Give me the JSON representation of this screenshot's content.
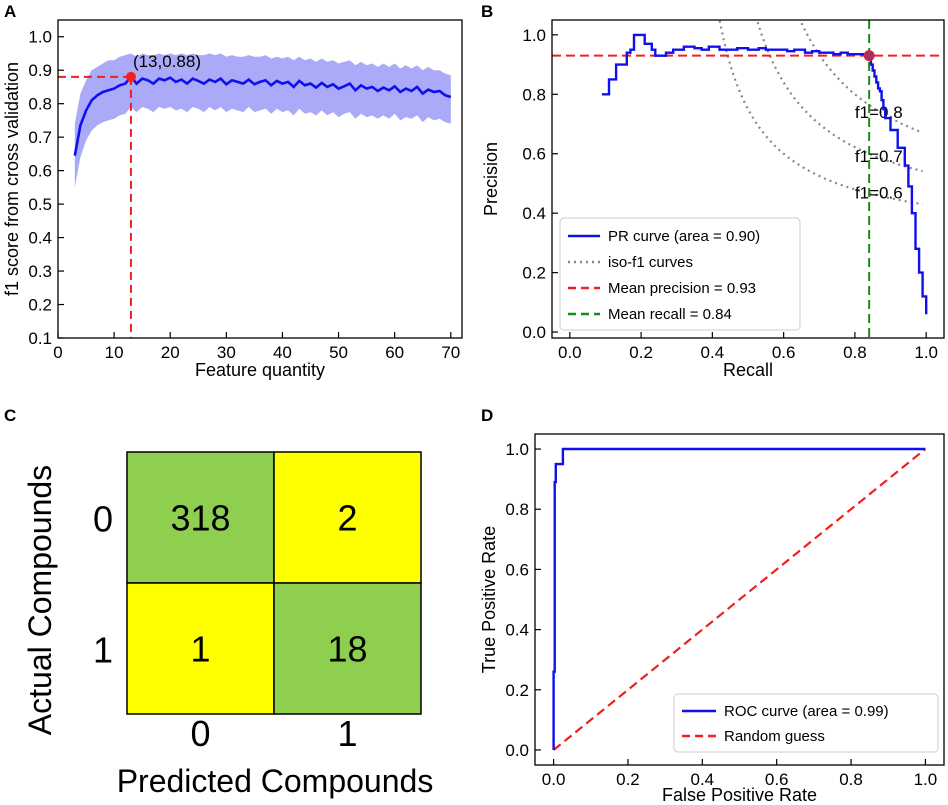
{
  "panels": {
    "a": "A",
    "b": "B",
    "c": "C",
    "d": "D"
  },
  "colors": {
    "blue": "#1010ee",
    "band": "#aaaaf8",
    "red": "#ee2020",
    "green": "#1a8a1a",
    "gray": "#888888",
    "cm_green": "#8fcf50",
    "cm_yellow": "#ffff00"
  },
  "chart_data": [
    {
      "id": "A",
      "type": "line",
      "xlabel": "Feature quantity",
      "ylabel": "f1 score from cross validation",
      "xlim": [
        0,
        72
      ],
      "ylim": [
        0.1,
        1.05
      ],
      "xticks": [
        0,
        10,
        20,
        30,
        40,
        50,
        60,
        70
      ],
      "yticks": [
        0.1,
        0.2,
        0.3,
        0.4,
        0.5,
        0.6,
        0.7,
        0.8,
        0.9,
        1.0
      ],
      "x": [
        3,
        4,
        5,
        6,
        7,
        8,
        9,
        10,
        11,
        12,
        13,
        14,
        15,
        16,
        17,
        18,
        19,
        20,
        21,
        22,
        23,
        24,
        25,
        26,
        27,
        28,
        29,
        30,
        31,
        32,
        33,
        34,
        35,
        36,
        37,
        38,
        39,
        40,
        41,
        42,
        43,
        44,
        45,
        46,
        47,
        48,
        49,
        50,
        51,
        52,
        53,
        54,
        55,
        56,
        57,
        58,
        59,
        60,
        61,
        62,
        63,
        64,
        65,
        66,
        67,
        68,
        69,
        70
      ],
      "mean": [
        0.645,
        0.735,
        0.78,
        0.81,
        0.825,
        0.835,
        0.84,
        0.845,
        0.855,
        0.86,
        0.88,
        0.86,
        0.875,
        0.87,
        0.86,
        0.875,
        0.87,
        0.878,
        0.865,
        0.872,
        0.86,
        0.875,
        0.868,
        0.86,
        0.872,
        0.865,
        0.875,
        0.858,
        0.87,
        0.865,
        0.86,
        0.872,
        0.858,
        0.865,
        0.87,
        0.855,
        0.868,
        0.86,
        0.865,
        0.85,
        0.868,
        0.855,
        0.86,
        0.848,
        0.862,
        0.85,
        0.858,
        0.845,
        0.852,
        0.86,
        0.84,
        0.855,
        0.845,
        0.85,
        0.838,
        0.848,
        0.84,
        0.852,
        0.835,
        0.845,
        0.838,
        0.85,
        0.83,
        0.842,
        0.835,
        0.838,
        0.825,
        0.82
      ],
      "upper": [
        0.74,
        0.83,
        0.87,
        0.9,
        0.91,
        0.92,
        0.93,
        0.93,
        0.94,
        0.945,
        0.95,
        0.94,
        0.95,
        0.945,
        0.945,
        0.95,
        0.945,
        0.95,
        0.945,
        0.95,
        0.945,
        0.95,
        0.945,
        0.945,
        0.95,
        0.945,
        0.95,
        0.94,
        0.945,
        0.94,
        0.94,
        0.945,
        0.94,
        0.94,
        0.945,
        0.935,
        0.94,
        0.935,
        0.94,
        0.93,
        0.94,
        0.93,
        0.935,
        0.925,
        0.935,
        0.925,
        0.93,
        0.92,
        0.925,
        0.93,
        0.915,
        0.925,
        0.915,
        0.92,
        0.91,
        0.92,
        0.91,
        0.92,
        0.905,
        0.915,
        0.905,
        0.915,
        0.9,
        0.91,
        0.9,
        0.9,
        0.89,
        0.885
      ],
      "lower": [
        0.55,
        0.64,
        0.69,
        0.72,
        0.735,
        0.745,
        0.75,
        0.755,
        0.765,
        0.77,
        0.79,
        0.775,
        0.79,
        0.785,
        0.775,
        0.79,
        0.785,
        0.79,
        0.78,
        0.785,
        0.775,
        0.79,
        0.785,
        0.775,
        0.79,
        0.78,
        0.79,
        0.775,
        0.785,
        0.78,
        0.775,
        0.79,
        0.775,
        0.78,
        0.785,
        0.77,
        0.785,
        0.775,
        0.78,
        0.765,
        0.785,
        0.77,
        0.775,
        0.765,
        0.78,
        0.765,
        0.775,
        0.76,
        0.77,
        0.775,
        0.755,
        0.77,
        0.76,
        0.765,
        0.755,
        0.765,
        0.755,
        0.77,
        0.75,
        0.76,
        0.755,
        0.765,
        0.745,
        0.76,
        0.75,
        0.755,
        0.745,
        0.74
      ],
      "best_point": {
        "x": 13,
        "y": 0.88,
        "label": "(13,0.88)"
      }
    },
    {
      "id": "B",
      "type": "line",
      "xlabel": "Recall",
      "ylabel": "Precision",
      "xlim": [
        -0.05,
        1.05
      ],
      "ylim": [
        -0.02,
        1.05
      ],
      "xticks": [
        0.0,
        0.2,
        0.4,
        0.6,
        0.8,
        1.0
      ],
      "yticks": [
        0.0,
        0.2,
        0.4,
        0.6,
        0.8,
        1.0
      ],
      "pr_curve": {
        "recall": [
          0.09,
          0.11,
          0.11,
          0.13,
          0.16,
          0.16,
          0.17,
          0.18,
          0.18,
          0.21,
          0.21,
          0.22,
          0.23,
          0.24,
          0.25,
          0.27,
          0.29,
          0.3,
          0.32,
          0.34,
          0.35,
          0.37,
          0.39,
          0.42,
          0.44,
          0.47,
          0.5,
          0.53,
          0.55,
          0.58,
          0.61,
          0.63,
          0.66,
          0.68,
          0.7,
          0.72,
          0.74,
          0.76,
          0.78,
          0.8,
          0.82,
          0.84,
          0.845,
          0.85,
          0.855,
          0.86,
          0.865,
          0.87,
          0.875,
          0.88,
          0.885,
          0.9,
          0.9,
          0.92,
          0.92,
          0.94,
          0.94,
          0.95,
          0.95,
          0.96,
          0.96,
          0.97,
          0.97,
          0.98,
          0.99,
          1.0
        ],
        "precision": [
          0.8,
          0.8,
          0.85,
          0.9,
          0.9,
          0.94,
          0.95,
          0.95,
          1.0,
          1.0,
          0.97,
          0.97,
          0.95,
          0.93,
          0.93,
          0.94,
          0.95,
          0.95,
          0.96,
          0.96,
          0.955,
          0.95,
          0.96,
          0.95,
          0.95,
          0.955,
          0.95,
          0.955,
          0.95,
          0.95,
          0.945,
          0.95,
          0.94,
          0.945,
          0.94,
          0.94,
          0.935,
          0.94,
          0.935,
          0.935,
          0.935,
          0.93,
          0.9,
          0.88,
          0.86,
          0.84,
          0.82,
          0.81,
          0.78,
          0.75,
          0.72,
          0.72,
          0.68,
          0.68,
          0.62,
          0.62,
          0.56,
          0.55,
          0.49,
          0.48,
          0.4,
          0.35,
          0.28,
          0.2,
          0.12,
          0.06
        ]
      },
      "iso_f1": [
        {
          "f1": 0.8,
          "label": "f1=0.8"
        },
        {
          "f1": 0.7,
          "label": "f1=0.7"
        },
        {
          "f1": 0.6,
          "label": "f1=0.6"
        }
      ],
      "mean_precision": 0.93,
      "mean_recall": 0.84,
      "legend": [
        {
          "label": "PR curve (area = 0.90)",
          "style": "solid-blue"
        },
        {
          "label": "iso-f1 curves",
          "style": "dotted-gray"
        },
        {
          "label": "Mean precision = 0.93",
          "style": "dashed-red"
        },
        {
          "label": "Mean recall = 0.84",
          "style": "dashed-green"
        }
      ],
      "legend_position": "lower-left"
    },
    {
      "id": "C",
      "type": "heatmap",
      "xlabel": "Predicted Compounds",
      "ylabel": "Actual Compounds",
      "row_labels": [
        "0",
        "1"
      ],
      "col_labels": [
        "0",
        "1"
      ],
      "matrix": [
        [
          318,
          2
        ],
        [
          1,
          18
        ]
      ],
      "cell_colors": [
        [
          "#8fcf50",
          "#ffff00"
        ],
        [
          "#ffff00",
          "#8fcf50"
        ]
      ]
    },
    {
      "id": "D",
      "type": "line",
      "xlabel": "False Positive Rate",
      "ylabel": "True Positive Rate",
      "xlim": [
        -0.05,
        1.05
      ],
      "ylim": [
        -0.05,
        1.05
      ],
      "xticks": [
        0.0,
        0.2,
        0.4,
        0.6,
        0.8,
        1.0
      ],
      "yticks": [
        0.0,
        0.2,
        0.4,
        0.6,
        0.8,
        1.0
      ],
      "roc_curve": {
        "fpr": [
          0.0,
          0.0,
          0.003,
          0.003,
          0.006,
          0.006,
          0.01,
          0.01,
          0.025,
          0.025,
          1.0
        ],
        "tpr": [
          0.0,
          0.26,
          0.26,
          0.89,
          0.89,
          0.95,
          0.95,
          0.95,
          0.95,
          1.0,
          1.0
        ]
      },
      "random_guess": {
        "fpr": [
          0,
          1
        ],
        "tpr": [
          0,
          1
        ]
      },
      "legend": [
        {
          "label": "ROC curve (area = 0.99)",
          "style": "solid-blue"
        },
        {
          "label": "Random guess",
          "style": "dashed-red"
        }
      ],
      "legend_position": "lower-right"
    }
  ]
}
